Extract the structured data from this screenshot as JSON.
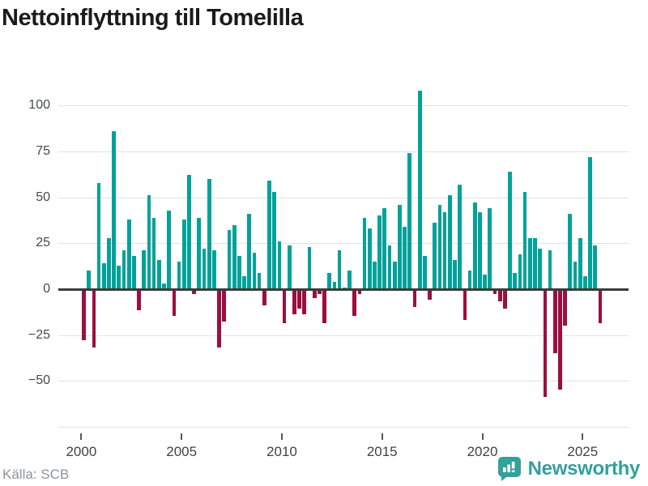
{
  "header": {
    "title": "Nettoinflyttning till Tomelilla"
  },
  "footer": {
    "source": "Källa: SCB",
    "brand": "Newsworthy"
  },
  "icons": {
    "brand_icon": "speech-bubble-bar-chart-icon"
  },
  "colors": {
    "positive": "#00a29a",
    "negative": "#9d0e3f",
    "baseline": "#3b3b3b",
    "gridline": "#e2e2e2",
    "brand_teal": "#33a09a"
  },
  "chart_data": {
    "type": "bar",
    "title": "Nettoinflyttning till Tomelilla",
    "frequency": "quarterly",
    "x_start": "2000Q1",
    "x_end": "2025Q4",
    "categories": [
      "2000Q1",
      "2000Q2",
      "2000Q3",
      "2000Q4",
      "2001Q1",
      "2001Q2",
      "2001Q3",
      "2001Q4",
      "2002Q1",
      "2002Q2",
      "2002Q3",
      "2002Q4",
      "2003Q1",
      "2003Q2",
      "2003Q3",
      "2003Q4",
      "2004Q1",
      "2004Q2",
      "2004Q3",
      "2004Q4",
      "2005Q1",
      "2005Q2",
      "2005Q3",
      "2005Q4",
      "2006Q1",
      "2006Q2",
      "2006Q3",
      "2006Q4",
      "2007Q1",
      "2007Q2",
      "2007Q3",
      "2007Q4",
      "2008Q1",
      "2008Q2",
      "2008Q3",
      "2008Q4",
      "2009Q1",
      "2009Q2",
      "2009Q3",
      "2009Q4",
      "2010Q1",
      "2010Q2",
      "2010Q3",
      "2010Q4",
      "2011Q1",
      "2011Q2",
      "2011Q3",
      "2011Q4",
      "2012Q1",
      "2012Q2",
      "2012Q3",
      "2012Q4",
      "2013Q1",
      "2013Q2",
      "2013Q3",
      "2013Q4",
      "2014Q1",
      "2014Q2",
      "2014Q3",
      "2014Q4",
      "2015Q1",
      "2015Q2",
      "2015Q3",
      "2015Q4",
      "2016Q1",
      "2016Q2",
      "2016Q3",
      "2016Q4",
      "2017Q1",
      "2017Q2",
      "2017Q3",
      "2017Q4",
      "2018Q1",
      "2018Q2",
      "2018Q3",
      "2018Q4",
      "2019Q1",
      "2019Q2",
      "2019Q3",
      "2019Q4",
      "2020Q1",
      "2020Q2",
      "2020Q3",
      "2020Q4",
      "2021Q1",
      "2021Q2",
      "2021Q3",
      "2021Q4",
      "2022Q1",
      "2022Q2",
      "2022Q3",
      "2022Q4",
      "2023Q1",
      "2023Q2",
      "2023Q3",
      "2023Q4",
      "2024Q1",
      "2024Q2",
      "2024Q3",
      "2024Q4",
      "2025Q1",
      "2025Q2",
      "2025Q3",
      "2025Q4"
    ],
    "values": [
      -27,
      10,
      -31,
      58,
      14,
      28,
      86,
      13,
      21,
      38,
      18,
      -11,
      21,
      51,
      39,
      16,
      3,
      43,
      -14,
      15,
      38,
      62,
      -2,
      39,
      22,
      60,
      21,
      -31,
      -17,
      32,
      35,
      18,
      7,
      41,
      20,
      9,
      -8,
      59,
      53,
      26,
      -18,
      24,
      -13,
      -10,
      -13,
      23,
      -4,
      -2,
      -18,
      9,
      4,
      21,
      1,
      10,
      -14,
      -2,
      39,
      33,
      15,
      40,
      44,
      24,
      15,
      46,
      34,
      74,
      -9,
      108,
      18,
      -5,
      36,
      46,
      42,
      51,
      16,
      57,
      -16,
      10,
      47,
      42,
      8,
      44,
      -2,
      -6,
      -10,
      64,
      9,
      19,
      53,
      28,
      28,
      22,
      -58,
      21,
      -34,
      -54,
      -19,
      41,
      15,
      28,
      7,
      72,
      24,
      -18
    ],
    "yticks": [
      100,
      75,
      50,
      25,
      0,
      -25,
      -50
    ],
    "extra_gridlines": [
      -75
    ],
    "xticks": [
      2000,
      2005,
      2010,
      2015,
      2020,
      2025
    ],
    "ylim": [
      -75,
      112
    ],
    "xlabel": "",
    "ylabel": "",
    "legend": "none",
    "grid": "horizontal"
  }
}
